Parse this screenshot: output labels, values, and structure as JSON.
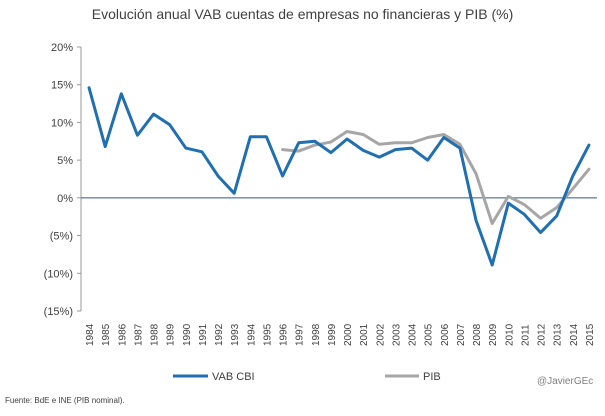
{
  "chart_data": {
    "type": "line",
    "title": "Evolución anual VAB cuentas de empresas no financieras y PIB (%)",
    "x": [
      "1984",
      "1985",
      "1986",
      "1987",
      "1988",
      "1989",
      "1990",
      "1991",
      "1992",
      "1993",
      "1994",
      "1995",
      "1996",
      "1997",
      "1998",
      "1999",
      "2000",
      "2001",
      "2002",
      "2003",
      "2004",
      "2005",
      "2006",
      "2007",
      "2008",
      "2009",
      "2010",
      "2011",
      "2012",
      "2013",
      "2014",
      "2015"
    ],
    "ylim": [
      -15,
      20
    ],
    "yticks": [
      20,
      15,
      10,
      5,
      0,
      -5,
      -10,
      -15
    ],
    "ytick_labels": [
      "20%",
      "15%",
      "10%",
      "5%",
      "0%",
      "(5%)",
      "(10%)",
      "(15%)"
    ],
    "grid": false,
    "legend_position": "bottom",
    "series": [
      {
        "name": "VAB CBI",
        "color": "#1f6fb2",
        "values": [
          14.6,
          6.8,
          13.8,
          8.3,
          11.1,
          9.7,
          6.6,
          6.1,
          2.9,
          0.6,
          8.1,
          8.1,
          2.9,
          7.3,
          7.5,
          6.0,
          7.8,
          6.3,
          5.4,
          6.4,
          6.6,
          5.0,
          8.0,
          6.6,
          -3.0,
          -8.9,
          -0.7,
          -2.2,
          -4.6,
          -2.4,
          2.9,
          7.0
        ]
      },
      {
        "name": "PIB",
        "color": "#a6a6a6",
        "values": [
          null,
          null,
          null,
          null,
          null,
          null,
          null,
          null,
          null,
          null,
          null,
          null,
          6.4,
          6.2,
          7.0,
          7.4,
          8.8,
          8.4,
          7.1,
          7.3,
          7.3,
          8.0,
          8.4,
          7.1,
          3.2,
          -3.4,
          0.2,
          -0.9,
          -2.7,
          -1.3,
          1.2,
          3.8
        ]
      }
    ]
  },
  "source_text": "Fuente: BdE e INE (PIB nominal).",
  "credit_text": "@JavierGEc"
}
